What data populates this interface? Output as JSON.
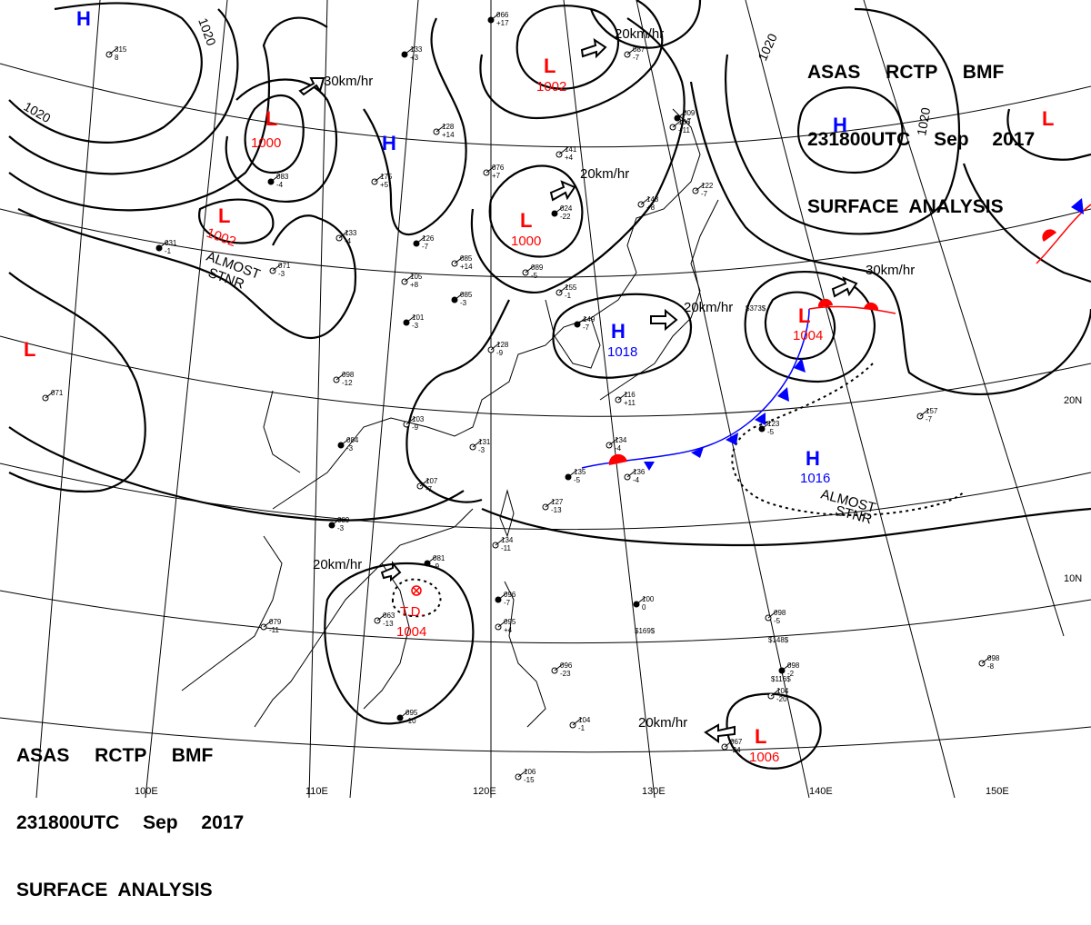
{
  "header": {
    "line1": "ASAS RCTP BMF",
    "line2": "231800UTC Sep 2017",
    "line3": "SURFACE ANALYSIS"
  },
  "colors": {
    "high": "#0000ff",
    "low": "#ff0000",
    "isobar": "#000000",
    "cold_front": "#0000ff",
    "warm_front": "#ff0000"
  },
  "pressure_centers": {
    "high_nw": {
      "symbol": "H"
    },
    "high_korea": {
      "symbol": "H",
      "value": "1018"
    },
    "high_ne": {
      "symbol": "H"
    },
    "high_pacific": {
      "symbol": "H",
      "value": "1016"
    },
    "high_mongolia": {
      "symbol": "H"
    },
    "low_siberia": {
      "symbol": "L",
      "value": "1000"
    },
    "low_lake": {
      "symbol": "L",
      "value": "1002"
    },
    "low_mongolia_n": {
      "symbol": "L",
      "value": "1002"
    },
    "low_manchuria": {
      "symbol": "L",
      "value": "1000"
    },
    "low_japan": {
      "symbol": "L",
      "value": "1004"
    },
    "low_west": {
      "symbol": "L"
    },
    "low_east": {
      "symbol": "L"
    },
    "low_south": {
      "symbol": "L",
      "value": "1006"
    },
    "td": {
      "symbol": "T.D.",
      "value": "1004"
    }
  },
  "isobar_labels": {
    "nw_top": "1020",
    "nw_left": "1020",
    "ne_left": "1020",
    "ne_right": "1020"
  },
  "motion_labels": {
    "siberia": "30km/hr",
    "north": "20km/hr",
    "manchuria": "20km/hr",
    "korea": "20km/hr",
    "japan": "30km/hr",
    "td": "20km/hr",
    "south": "20km/hr"
  },
  "annotations": {
    "almost_stnr_w_1": "ALMOST",
    "almost_stnr_w_2": "STNR",
    "almost_stnr_e_1": "ALMOST",
    "almost_stnr_e_2": "STNR"
  },
  "lat_labels": {
    "lat20": "20N",
    "lat10": "10N"
  },
  "lon_labels": {
    "lon100": "100E",
    "lon110": "110E",
    "lon120": "120E",
    "lon130": "130E",
    "lon140": "140E",
    "lon150": "150E"
  },
  "station_obs": [
    {
      "t": "066",
      "d": "+17"
    },
    {
      "t": "087",
      "d": "-7"
    },
    {
      "t": "315",
      "d": "8"
    },
    {
      "t": "133",
      "d": "+3"
    },
    {
      "t": "128",
      "d": "+14"
    },
    {
      "t": "106",
      "d": "+11"
    },
    {
      "t": "009",
      "d": "+7"
    },
    {
      "t": "141",
      "d": "+4"
    },
    {
      "t": "076",
      "d": "+7"
    },
    {
      "t": "024",
      "d": "-22"
    },
    {
      "t": "143",
      "d": "+8"
    },
    {
      "t": "122",
      "d": "-7"
    },
    {
      "t": "083",
      "d": "-4"
    },
    {
      "t": "175",
      "d": "+5"
    },
    {
      "t": "133",
      "d": "-4"
    },
    {
      "t": "126",
      "d": "-7"
    },
    {
      "t": "085",
      "d": "+14"
    },
    {
      "t": "089",
      "d": "-5"
    },
    {
      "t": "031",
      "d": "-1"
    },
    {
      "t": "071",
      "d": "-3"
    },
    {
      "t": "105",
      "d": "+8"
    },
    {
      "t": "085",
      "d": "-3"
    },
    {
      "t": "155",
      "d": "-1"
    },
    {
      "t": "128",
      "d": "-9"
    },
    {
      "t": "101",
      "d": "-3"
    },
    {
      "t": "098",
      "d": "-12"
    },
    {
      "t": "071",
      "d": ""
    },
    {
      "t": "149",
      "d": "-7"
    },
    {
      "t": "116",
      "d": "+11"
    },
    {
      "t": "103",
      "d": "-9"
    },
    {
      "t": "084",
      "d": "-3"
    },
    {
      "t": "131",
      "d": "-3"
    },
    {
      "t": "134",
      "d": "-4"
    },
    {
      "t": "135",
      "d": "-5"
    },
    {
      "t": "136",
      "d": "-4"
    },
    {
      "t": "107",
      "d": "-7"
    },
    {
      "t": "089",
      "d": "-3"
    },
    {
      "t": "127",
      "d": "-13"
    },
    {
      "t": "134",
      "d": "-11"
    },
    {
      "t": "081",
      "d": "-9"
    },
    {
      "t": "063",
      "d": "-13"
    },
    {
      "t": "079",
      "d": "-11"
    },
    {
      "t": "096",
      "d": "-7"
    },
    {
      "t": "095",
      "d": "+4"
    },
    {
      "t": "096",
      "d": "-23"
    },
    {
      "t": "095",
      "d": "-10"
    },
    {
      "t": "104",
      "d": "-1"
    },
    {
      "t": "106",
      "d": "-15"
    },
    {
      "t": "100",
      "d": "0"
    },
    {
      "t": "098",
      "d": "-5"
    },
    {
      "t": "098",
      "d": "-8"
    },
    {
      "t": "098",
      "d": "-2"
    },
    {
      "t": "067",
      "d": "-24"
    },
    {
      "t": "157",
      "d": "-7"
    },
    {
      "t": "123",
      "d": "-5"
    },
    {
      "t": "104",
      "d": "-20"
    }
  ],
  "station_codes": [
    "$373$",
    "$169$",
    "$148$",
    "$116$"
  ]
}
